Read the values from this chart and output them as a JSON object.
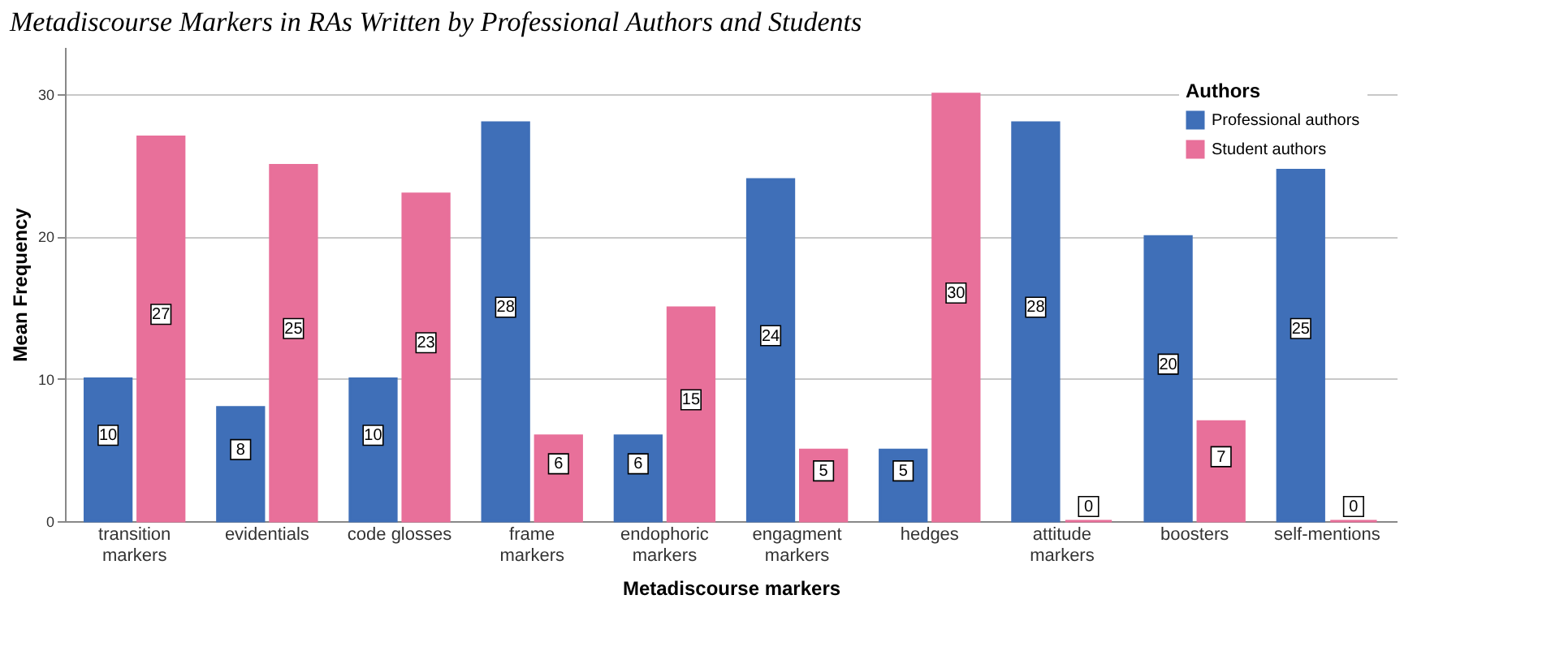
{
  "chart_data": {
    "type": "bar",
    "title": "Metadiscourse Markers in RAs Written by Professional Authors and Students",
    "categories": [
      "transition\nmarkers",
      "evidentials",
      "code glosses",
      "frame\nmarkers",
      "endophoric\nmarkers",
      "engagment\nmarkers",
      "hedges",
      "attitude\nmarkers",
      "boosters",
      "self-mentions"
    ],
    "series": [
      {
        "name": "Professional authors",
        "color": "#3f6fb8",
        "values": [
          10,
          8,
          10,
          28,
          6,
          24,
          5,
          28,
          20,
          25
        ]
      },
      {
        "name": "Student authors",
        "color": "#e8709a",
        "values": [
          27,
          25,
          23,
          6,
          15,
          5,
          30,
          0,
          7,
          0
        ]
      }
    ],
    "xlabel": "Metadiscourse markers",
    "ylabel": "Mean Frequency",
    "legend_title": "Authors",
    "ylim": [
      0,
      33.3
    ],
    "yticks": [
      0,
      10,
      20,
      30
    ],
    "grid": "y",
    "legend": "top right",
    "data_labels": true
  }
}
